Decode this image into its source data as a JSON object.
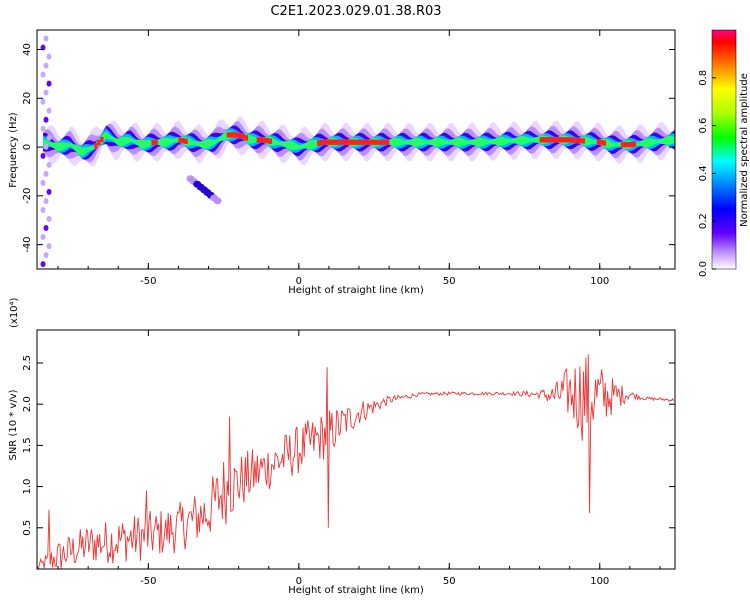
{
  "title": "C2E1.2023.029.01.38.R03",
  "chart_data": [
    {
      "type": "heatmap",
      "xlabel": "Height of straight line (km)",
      "ylabel": "Frequency (Hz)",
      "xlim": [
        -87,
        125
      ],
      "ylim": [
        -50,
        48
      ],
      "x_ticks": [
        "-50",
        "0",
        "50",
        "100"
      ],
      "y_ticks": [
        "-40",
        "-20",
        "0",
        "20",
        "40"
      ],
      "colorbar": {
        "label": "Normalized spectral amplitude",
        "range": [
          0,
          1
        ],
        "ticks": [
          "0.0",
          "0.2",
          "0.4",
          "0.6",
          "0.8"
        ]
      },
      "ridge": {
        "x": [
          -84,
          -80,
          -76,
          -72,
          -68,
          -64,
          -60,
          -56,
          -52,
          -48,
          -44,
          -40,
          -36,
          -32,
          -28,
          -24,
          -20,
          -16,
          -12,
          -8,
          -4,
          0,
          4,
          8,
          20,
          40,
          60,
          80,
          90,
          100,
          104,
          110,
          125
        ],
        "f": [
          2,
          0,
          1,
          -2,
          0,
          5,
          2,
          3,
          1,
          2,
          2,
          3,
          2,
          1,
          2,
          5,
          5,
          3,
          3,
          2,
          1,
          0,
          1,
          2,
          2,
          2,
          2,
          3,
          3,
          2,
          1,
          1,
          3
        ]
      },
      "blob": {
        "x": [
          -36,
          -27
        ],
        "f": [
          -13,
          -22
        ]
      }
    },
    {
      "type": "line",
      "xlabel": "Height of straight line (km)",
      "ylabel": "SNR (10 * v/v)",
      "y_multiplier": "(x10⁴)",
      "xlim": [
        -87,
        125
      ],
      "ylim": [
        0,
        2.9
      ],
      "x_ticks": [
        "-50",
        "0",
        "50",
        "100"
      ],
      "y_ticks": [
        "0.5",
        "1.0",
        "1.5",
        "2.0",
        "2.5"
      ],
      "series": [
        {
          "color": "#ee3333",
          "envelope": {
            "x": [
              -87,
              -80,
              -70,
              -60,
              -50,
              -40,
              -30,
              -25,
              -20,
              -10,
              0,
              10,
              20,
              30,
              40,
              50,
              60,
              70,
              80,
              85,
              90,
              95,
              100,
              105,
              110,
              115,
              125
            ],
            "mean": [
              0.02,
              0.15,
              0.3,
              0.35,
              0.4,
              0.5,
              0.7,
              0.95,
              1.05,
              1.25,
              1.45,
              1.65,
              1.9,
              2.05,
              2.12,
              2.13,
              2.13,
              2.13,
              2.12,
              2.1,
              2.15,
              2.1,
              2.1,
              2.1,
              2.12,
              2.07,
              2.05
            ],
            "amp": [
              0.05,
              0.2,
              0.25,
              0.28,
              0.3,
              0.3,
              0.35,
              0.45,
              0.35,
              0.3,
              0.3,
              0.3,
              0.15,
              0.05,
              0.02,
              0.02,
              0.02,
              0.02,
              0.05,
              0.15,
              0.35,
              0.6,
              0.4,
              0.2,
              0.05,
              0.02,
              0.02
            ]
          },
          "peaks": [
            {
              "x": -83,
              "y": 0.72
            },
            {
              "x": -50.5,
              "y": 0.95
            },
            {
              "x": -44,
              "y": 0.6
            },
            {
              "x": -23,
              "y": 1.85
            },
            {
              "x": 9.5,
              "y": 2.45
            },
            {
              "x": 9.7,
              "y": 0.5
            },
            {
              "x": 96.5,
              "y": 2.9
            },
            {
              "x": 96.8,
              "y": 0.68
            }
          ]
        }
      ]
    }
  ]
}
